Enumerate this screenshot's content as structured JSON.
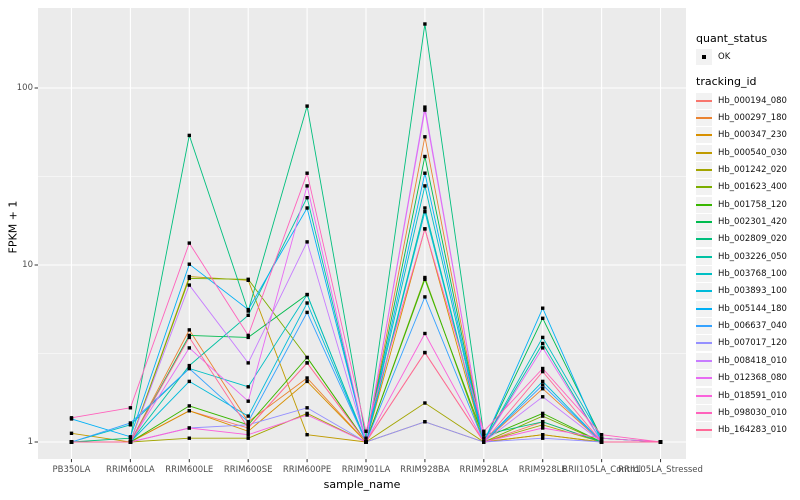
{
  "colors": {
    "background": "#FFFFFF",
    "panel_bg": "#EBEBEB",
    "grid": "#FFFFFF",
    "axis_text": "#4D4D4D",
    "tick_mark": "#333333",
    "point": "#000000",
    "legend_key_bg": "#F2F2F2"
  },
  "axes": {
    "x_title": "sample_name",
    "y_title": "FPKM + 1"
  },
  "legend": {
    "quant_status_title": "quant_status",
    "quant_status_items": [
      {
        "label": "OK",
        "shape": "point"
      }
    ],
    "tracking_id_title": "tracking_id"
  },
  "chart_data": {
    "type": "line",
    "title": "",
    "xlabel": "sample_name",
    "ylabel": "FPKM + 1",
    "y_scale": "log10",
    "ylim": [
      1,
      275
    ],
    "y_ticks": [
      1,
      10,
      100
    ],
    "y_minor_breaks": [
      3.162,
      31.62
    ],
    "grid": "on",
    "legend_position": "right",
    "point_style": "small black marker at every observation (quant_status = OK)",
    "x_categories": [
      "PB350LA",
      "RRIM600LA",
      "RRIM600LE",
      "RRIM600SE",
      "RRIM600PE",
      "RRIM901LA",
      "RRIM928BA",
      "RRIM928LA",
      "RRIM928LE",
      "RRII105LA_Control",
      "RRII105LA_Stressed"
    ],
    "series": [
      {
        "name": "Hb_000194_080",
        "color": "#F8766D",
        "values": [
          1.0,
          1.0,
          1.5,
          1.2,
          2.8,
          1.0,
          3.2,
          1.0,
          1.3,
          1.0,
          1.0
        ]
      },
      {
        "name": "Hb_000297_180",
        "color": "#EA8331",
        "values": [
          1.0,
          1.0,
          4.3,
          1.3,
          2.3,
          1.0,
          53,
          1.0,
          2.0,
          1.0,
          1.0
        ]
      },
      {
        "name": "Hb_000347_230",
        "color": "#D89000",
        "values": [
          1.0,
          1.0,
          1.5,
          1.15,
          2.2,
          1.0,
          16,
          1.0,
          1.1,
          1.0,
          1.0
        ]
      },
      {
        "name": "Hb_000540_030",
        "color": "#C09B00",
        "values": [
          1.12,
          1.0,
          8.6,
          8.2,
          1.1,
          1.0,
          1.3,
          1.0,
          1.1,
          1.0,
          1.0
        ]
      },
      {
        "name": "Hb_001242_020",
        "color": "#A3A500",
        "values": [
          1.0,
          1.0,
          1.05,
          1.05,
          1.45,
          1.0,
          1.66,
          1.0,
          1.25,
          1.0,
          1.0
        ]
      },
      {
        "name": "Hb_001623_400",
        "color": "#7CAE00",
        "values": [
          1.0,
          1.0,
          8.4,
          8.3,
          3.0,
          1.0,
          8.5,
          1.0,
          1.4,
          1.0,
          1.0
        ]
      },
      {
        "name": "Hb_001758_120",
        "color": "#39B600",
        "values": [
          1.0,
          1.0,
          1.6,
          1.25,
          3.0,
          1.0,
          8.3,
          1.05,
          1.45,
          1.0,
          1.0
        ]
      },
      {
        "name": "Hb_002301_420",
        "color": "#00BB4E",
        "values": [
          1.0,
          1.0,
          4.0,
          3.9,
          6.8,
          1.0,
          41,
          1.0,
          5.0,
          1.05,
          1.0
        ]
      },
      {
        "name": "Hb_002809_020",
        "color": "#00BF7D",
        "values": [
          1.0,
          1.05,
          54,
          5.5,
          79,
          1.05,
          230,
          1.1,
          1.3,
          1.0,
          1.0
        ]
      },
      {
        "name": "Hb_003226_050",
        "color": "#00C1A3",
        "values": [
          1.0,
          1.0,
          2.7,
          5.2,
          24,
          1.0,
          21,
          1.0,
          3.6,
          1.0,
          1.0
        ]
      },
      {
        "name": "Hb_003768_100",
        "color": "#00BFC4",
        "values": [
          1.0,
          1.25,
          2.6,
          2.05,
          6.8,
          1.0,
          28,
          1.0,
          3.9,
          1.05,
          1.0
        ]
      },
      {
        "name": "Hb_003893_100",
        "color": "#00BBDA",
        "values": [
          1.0,
          1.0,
          2.2,
          1.4,
          6.1,
          1.0,
          20,
          1.0,
          2.2,
          1.0,
          1.0
        ]
      },
      {
        "name": "Hb_005144_180",
        "color": "#00B0F6",
        "values": [
          1.35,
          1.07,
          10.1,
          5.6,
          21,
          1.0,
          33,
          1.0,
          5.7,
          1.0,
          1.0
        ]
      },
      {
        "name": "Hb_006637_040",
        "color": "#35A2FF",
        "values": [
          1.0,
          1.28,
          2.6,
          1.3,
          5.4,
          1.0,
          6.6,
          1.0,
          2.1,
          1.0,
          1.0
        ]
      },
      {
        "name": "Hb_007017_120",
        "color": "#9590FF",
        "values": [
          1.0,
          1.0,
          1.2,
          1.25,
          1.56,
          1.0,
          1.3,
          1.0,
          1.05,
          1.0,
          1.0
        ]
      },
      {
        "name": "Hb_008418_010",
        "color": "#C77CFF",
        "values": [
          1.0,
          1.0,
          7.7,
          2.8,
          13.5,
          1.0,
          78,
          1.0,
          1.8,
          1.0,
          1.0
        ]
      },
      {
        "name": "Hb_012368_080",
        "color": "#E76BF3",
        "values": [
          1.0,
          1.0,
          3.4,
          1.7,
          28,
          1.0,
          75,
          1.0,
          3.4,
          1.0,
          1.0
        ]
      },
      {
        "name": "Hb_018591_010",
        "color": "#FA62DB",
        "values": [
          1.0,
          1.0,
          1.2,
          1.1,
          1.42,
          1.0,
          4.1,
          1.0,
          1.2,
          1.05,
          1.0
        ]
      },
      {
        "name": "Hb_098030_010",
        "color": "#FF62BC",
        "values": [
          1.37,
          1.56,
          13.3,
          4.0,
          33,
          1.15,
          16,
          1.15,
          2.6,
          1.1,
          1.0
        ]
      },
      {
        "name": "Hb_164283_010",
        "color": "#FF6A98",
        "values": [
          1.0,
          1.0,
          3.9,
          1.2,
          2.8,
          1.0,
          3.2,
          1.0,
          2.5,
          1.0,
          1.0
        ]
      }
    ]
  }
}
